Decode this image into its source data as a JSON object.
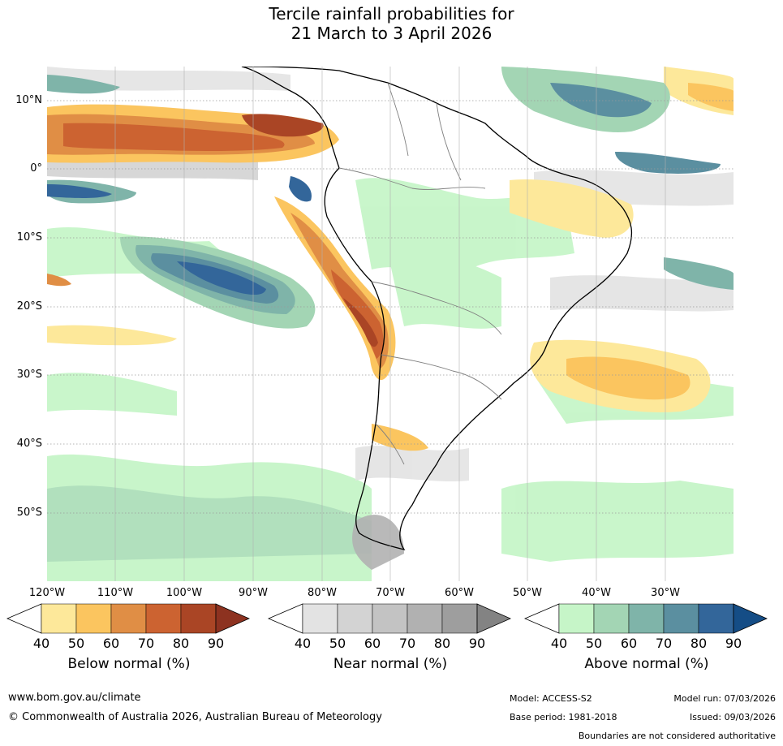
{
  "title": {
    "line1": "Tercile rainfall probabilities for",
    "line2": "21 March to 3 April 2026"
  },
  "map": {
    "lat_labels": [
      "10°N",
      "0°",
      "10°S",
      "20°S",
      "30°S",
      "40°S",
      "50°S"
    ],
    "lon_labels": [
      "120°W",
      "110°W",
      "100°W",
      "90°W",
      "80°W",
      "70°W",
      "60°W",
      "50°W",
      "40°W",
      "30°W"
    ]
  },
  "colorbars": [
    {
      "name": "below",
      "caption": "Below normal (%)",
      "ticks": [
        "40",
        "50",
        "60",
        "70",
        "80",
        "90"
      ],
      "colors": [
        "#ffffff",
        "#fde89a",
        "#fbc55f",
        "#e08e45",
        "#cc6331",
        "#aa4525",
        "#8d3220"
      ]
    },
    {
      "name": "near",
      "caption": "Near normal (%)",
      "ticks": [
        "40",
        "50",
        "60",
        "70",
        "80",
        "90"
      ],
      "colors": [
        "#ffffff",
        "#e3e3e3",
        "#d3d3d3",
        "#c3c3c3",
        "#b1b1b1",
        "#9e9e9e",
        "#838383"
      ]
    },
    {
      "name": "above",
      "caption": "Above normal (%)",
      "ticks": [
        "40",
        "50",
        "60",
        "70",
        "80",
        "90"
      ],
      "colors": [
        "#ffffff",
        "#c6f5c8",
        "#a3d5b4",
        "#7fb4a9",
        "#5b8fa0",
        "#33669a",
        "#154d86"
      ]
    }
  ],
  "footer": {
    "website": "www.bom.gov.au/climate",
    "copyright": "© Commonwealth of Australia 2026, Australian Bureau of Meteorology",
    "model": "Model: ACCESS-S2",
    "base_period": "Base period: 1981-2018",
    "model_run": "Model run: 07/03/2026",
    "issued": "Issued: 09/03/2026",
    "disclaimer": "Boundaries are not considered authoritative"
  }
}
